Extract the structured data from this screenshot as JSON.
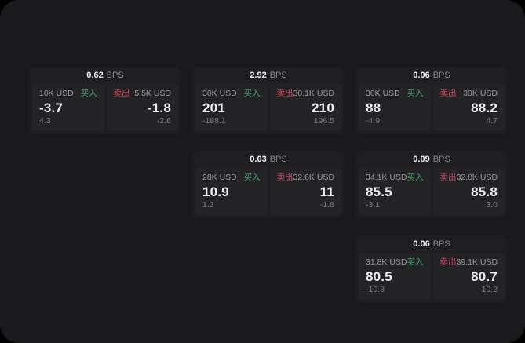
{
  "colors": {
    "buy_green": "#3fa368",
    "sell_red": "#c8465c",
    "page_bg": "#1a1a1c",
    "card_bg": "#1f1f21",
    "panel_bg": "#242427"
  },
  "cards": [
    {
      "bps": "0.62",
      "unit": "BPS",
      "buy": {
        "amount": "10K USD",
        "side": "买入",
        "value": "-3.7",
        "delta": "4.3"
      },
      "sell": {
        "side": "卖出",
        "amount": "5.5K USD",
        "value": "-1.8",
        "delta": "-2.6"
      }
    },
    {
      "bps": "2.92",
      "unit": "BPS",
      "buy": {
        "amount": "30K USD",
        "side": "买入",
        "value": "201",
        "delta": "-188.1"
      },
      "sell": {
        "side": "卖出",
        "amount": "30.1K USD",
        "value": "210",
        "delta": "196.5"
      }
    },
    {
      "bps": "0.06",
      "unit": "BPS",
      "buy": {
        "amount": "30K USD",
        "side": "买入",
        "value": "88",
        "delta": "-4.9"
      },
      "sell": {
        "side": "卖出",
        "amount": "30K USD",
        "value": "88.2",
        "delta": "4.7"
      }
    },
    {
      "bps": "0.03",
      "unit": "BPS",
      "buy": {
        "amount": "28K USD",
        "side": "买入",
        "value": "10.9",
        "delta": "1.3"
      },
      "sell": {
        "side": "卖出",
        "amount": "32.6K USD",
        "value": "11",
        "delta": "-1.8"
      }
    },
    {
      "bps": "0.09",
      "unit": "BPS",
      "buy": {
        "amount": "34.1K USD",
        "side": "买入",
        "value": "85.5",
        "delta": "-3.1"
      },
      "sell": {
        "side": "卖出",
        "amount": "32.8K USD",
        "value": "85.8",
        "delta": "3.0"
      }
    },
    {
      "bps": "0.06",
      "unit": "BPS",
      "buy": {
        "amount": "31.8K USD",
        "side": "买入",
        "value": "80.5",
        "delta": "-10.8"
      },
      "sell": {
        "side": "卖出",
        "amount": "39.1K USD",
        "value": "80.7",
        "delta": "10.2"
      }
    }
  ]
}
